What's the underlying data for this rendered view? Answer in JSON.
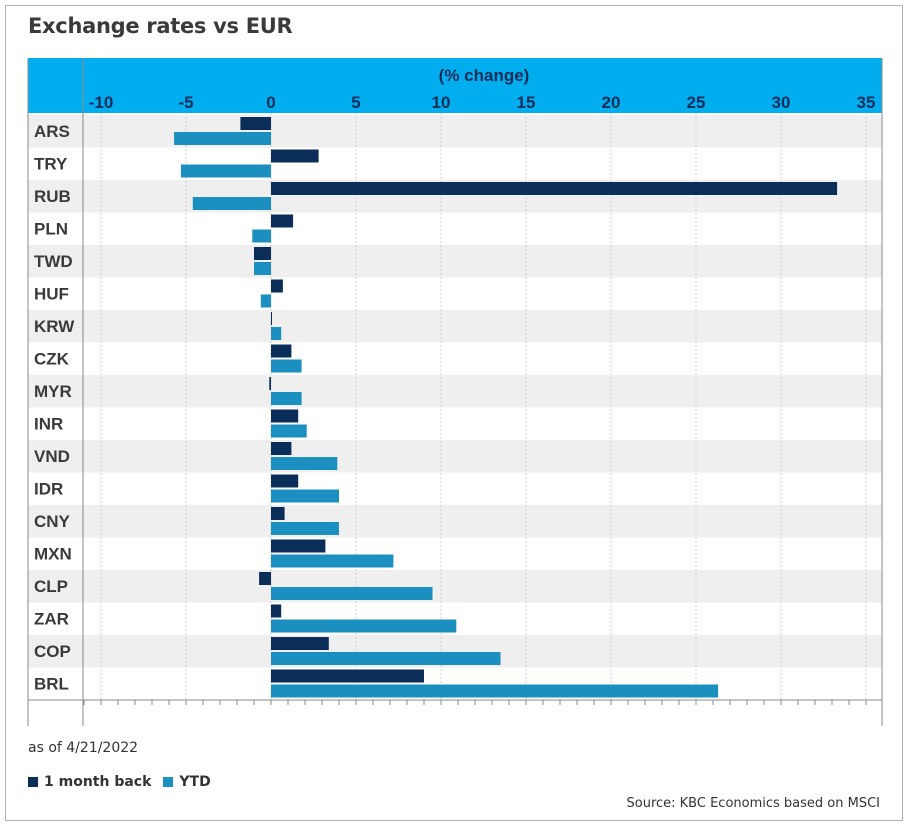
{
  "title": "Exchange rates vs EUR",
  "as_of": "as of 4/21/2022",
  "source": "Source: KBC Economics based on MSCI",
  "colors": {
    "header_bg": "#00aeef",
    "month": "#0a2d5a",
    "ytd": "#1a8fc0",
    "stripe": "#efefef"
  },
  "legend": [
    {
      "label": "1 month back",
      "color": "#0a2d5a"
    },
    {
      "label": "YTD",
      "color": "#1a8fc0"
    }
  ],
  "chart_data": {
    "type": "bar",
    "orientation": "horizontal",
    "title": "Exchange rates vs EUR",
    "xlabel": "(% change)",
    "xlim": [
      -11,
      36
    ],
    "xticks": [
      -10,
      -5,
      0,
      5,
      10,
      15,
      20,
      25,
      30,
      35
    ],
    "categories": [
      "ARS",
      "TRY",
      "RUB",
      "PLN",
      "TWD",
      "HUF",
      "KRW",
      "CZK",
      "MYR",
      "INR",
      "VND",
      "IDR",
      "CNY",
      "MXN",
      "CLP",
      "ZAR",
      "COP",
      "BRL"
    ],
    "series": [
      {
        "name": "1 month back",
        "values": [
          -1.8,
          2.8,
          33.3,
          1.3,
          -1.0,
          0.7,
          0.0,
          1.2,
          -0.1,
          1.6,
          1.2,
          1.6,
          0.8,
          3.2,
          -0.7,
          0.6,
          3.4,
          9.0
        ]
      },
      {
        "name": "YTD",
        "values": [
          -5.7,
          -5.3,
          -4.6,
          -1.1,
          -1.0,
          -0.6,
          0.6,
          1.8,
          1.8,
          2.1,
          3.9,
          4.0,
          4.0,
          7.2,
          9.5,
          10.9,
          13.5,
          26.3
        ]
      }
    ],
    "grid": true,
    "legend_position": "bottom-left"
  }
}
